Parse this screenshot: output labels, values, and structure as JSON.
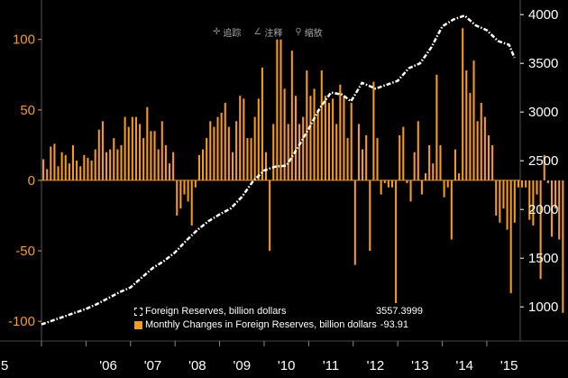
{
  "toolbar": {
    "track_label": "追踪",
    "annotate_label": "注释",
    "zoom_label": "缩放",
    "track_icon": "crosshair-icon",
    "annotate_icon": "pencil-icon",
    "zoom_icon": "magnifier-icon"
  },
  "legend": {
    "reserves_label": "Foreign Reserves, billion dollars",
    "reserves_value": "3557.3999",
    "changes_label": "Monthly Changes in Foreign Reserves, billion dollars",
    "changes_value": "-93.91"
  },
  "colors": {
    "background": "#000000",
    "bars": "#f79b1b",
    "left_axis": "#f79b1b",
    "right_axis": "#ffffff",
    "line": "#ffffff"
  },
  "chart_data": {
    "type": "bar+line",
    "x_tick_labels": [
      "5",
      "'06",
      "'07",
      "'08",
      "'09",
      "'10",
      "'11",
      "'12",
      "'13",
      "'14",
      "'15"
    ],
    "x_tick_years": [
      2005,
      2006,
      2007,
      2008,
      2009,
      2010,
      2011,
      2012,
      2013,
      2014,
      2015
    ],
    "x_range": [
      2005.0,
      2015.75
    ],
    "left_axis": {
      "ticks": [
        100,
        50,
        0,
        -50,
        -100
      ],
      "ylim": [
        -114,
        128
      ]
    },
    "right_axis": {
      "ticks": [
        4000,
        3500,
        3000,
        2500,
        2000,
        1500,
        1000
      ],
      "ylim": [
        650,
        4150
      ]
    },
    "bars": {
      "name": "Monthly Changes in Foreign Reserves, billion dollars",
      "start": 2005.0,
      "step": 0.08333,
      "values": [
        15,
        8,
        24,
        26,
        10,
        20,
        18,
        12,
        25,
        14,
        10,
        18,
        16,
        14,
        22,
        36,
        42,
        20,
        22,
        30,
        22,
        25,
        45,
        38,
        45,
        45,
        40,
        30,
        52,
        35,
        35,
        22,
        42,
        25,
        12,
        20,
        -25,
        -20,
        -10,
        -15,
        -32,
        -5,
        18,
        22,
        30,
        42,
        38,
        45,
        48,
        55,
        38,
        20,
        42,
        60,
        58,
        30,
        30,
        45,
        58,
        80,
        20,
        -50,
        40,
        100,
        100,
        65,
        40,
        92,
        60,
        40,
        45,
        78,
        60,
        65,
        50,
        78,
        60,
        55,
        58,
        40,
        68,
        60,
        30,
        55,
        -60,
        40,
        22,
        32,
        -50,
        70,
        30,
        -10,
        -2,
        -5,
        -5,
        -90,
        32,
        38,
        -2,
        -15,
        20,
        42,
        -10,
        5,
        25,
        12,
        75,
        25,
        -12,
        -5,
        -42,
        22,
        5,
        108,
        78,
        62,
        85,
        42,
        55,
        45,
        32,
        25,
        -25,
        -30,
        -20,
        -35,
        -80,
        -30,
        -5,
        -5,
        -5,
        -28,
        -32,
        -10,
        -70,
        18,
        -2,
        -40,
        -20,
        -42,
        -94
      ]
    },
    "line": {
      "name": "Foreign Reserves, billion dollars",
      "points": [
        [
          2005.0,
          820
        ],
        [
          2005.25,
          860
        ],
        [
          2005.5,
          900
        ],
        [
          2005.75,
          940
        ],
        [
          2006.0,
          980
        ],
        [
          2006.25,
          1030
        ],
        [
          2006.5,
          1090
        ],
        [
          2006.75,
          1150
        ],
        [
          2007.0,
          1200
        ],
        [
          2007.25,
          1300
        ],
        [
          2007.5,
          1400
        ],
        [
          2007.75,
          1470
        ],
        [
          2008.0,
          1560
        ],
        [
          2008.25,
          1680
        ],
        [
          2008.5,
          1790
        ],
        [
          2008.75,
          1880
        ],
        [
          2009.0,
          1950
        ],
        [
          2009.25,
          2010
        ],
        [
          2009.5,
          2130
        ],
        [
          2009.75,
          2290
        ],
        [
          2010.0,
          2400
        ],
        [
          2010.25,
          2440
        ],
        [
          2010.5,
          2450
        ],
        [
          2010.75,
          2630
        ],
        [
          2011.0,
          2830
        ],
        [
          2011.25,
          3040
        ],
        [
          2011.5,
          3200
        ],
        [
          2011.75,
          3180
        ],
        [
          2011.95,
          3110
        ],
        [
          2012.2,
          3300
        ],
        [
          2012.5,
          3240
        ],
        [
          2012.75,
          3280
        ],
        [
          2013.0,
          3320
        ],
        [
          2013.25,
          3450
        ],
        [
          2013.5,
          3500
        ],
        [
          2013.75,
          3660
        ],
        [
          2014.0,
          3880
        ],
        [
          2014.25,
          3950
        ],
        [
          2014.5,
          3990
        ],
        [
          2014.75,
          3890
        ],
        [
          2015.0,
          3840
        ],
        [
          2015.25,
          3730
        ],
        [
          2015.5,
          3690
        ],
        [
          2015.62,
          3557
        ]
      ]
    }
  }
}
